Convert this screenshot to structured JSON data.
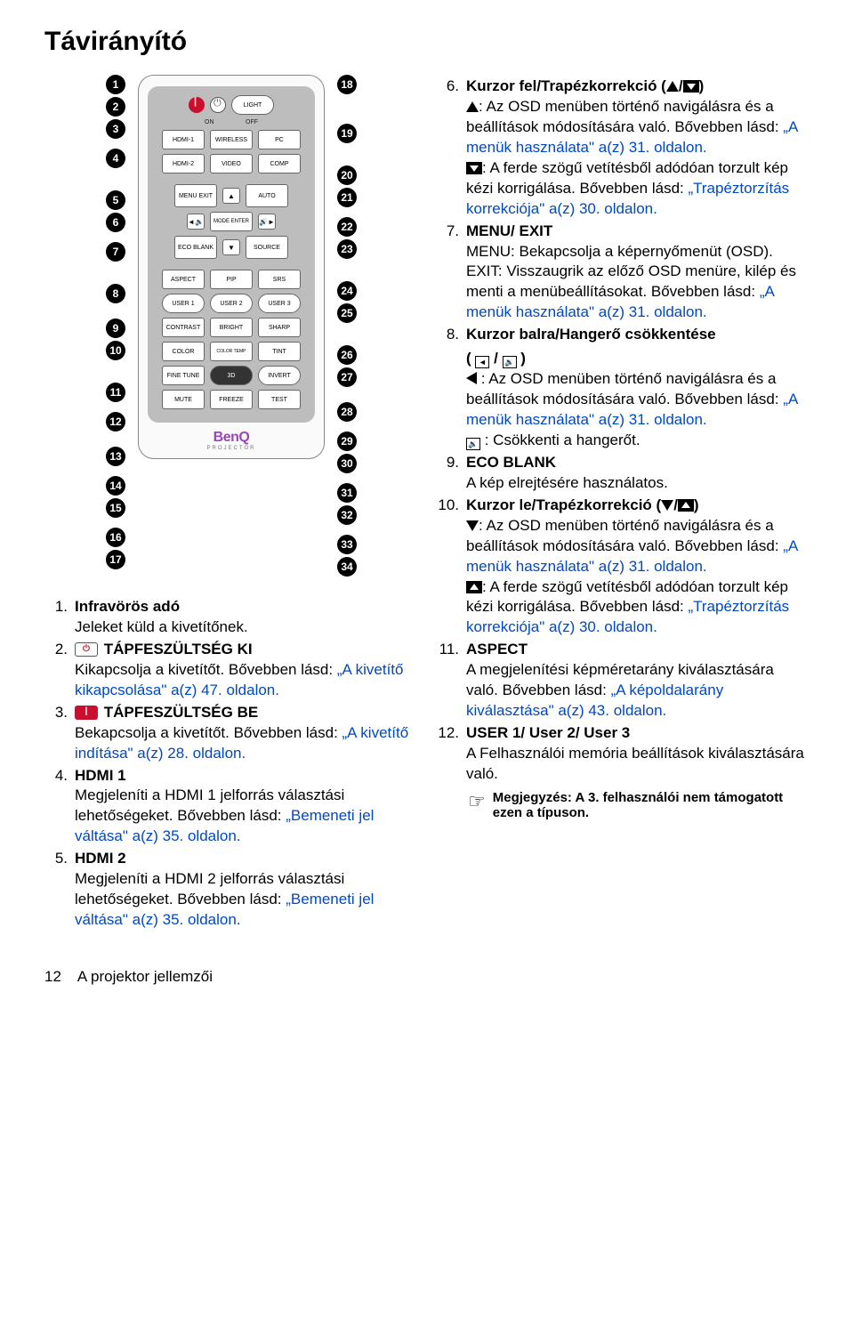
{
  "title": "Távirányító",
  "remote": {
    "onoff_on": "ON",
    "onoff_off": "OFF",
    "light": "LIGHT",
    "hdmi1": "HDMI-1",
    "wireless": "WIRELESS",
    "pc": "PC",
    "hdmi2": "HDMI-2",
    "video": "VIDEO",
    "comp": "COMP",
    "menu_exit": "MENU EXIT",
    "auto": "AUTO",
    "mode_enter": "MODE ENTER",
    "eco_blank": "ECO BLANK",
    "source": "SOURCE",
    "aspect": "ASPECT",
    "pip": "PIP",
    "srs": "SRS",
    "user1": "USER 1",
    "user2": "USER 2",
    "user3": "USER 3",
    "contrast": "CONTRAST",
    "bright": "BRIGHT",
    "sharp": "SHARP",
    "color": "COLOR",
    "colortemp": "COLOR TEMP",
    "tint": "TINT",
    "finetune": "FINE TUNE",
    "threeD": "3D",
    "invert": "INVERT",
    "mute": "MUTE",
    "freeze": "FREEZE",
    "test": "TEST",
    "logo": "BenQ",
    "logo_sub": "PROJECTOR"
  },
  "left_nums": [
    "1",
    "2",
    "3",
    "4",
    "5",
    "6",
    "7",
    "8",
    "9",
    "10",
    "11",
    "12",
    "13",
    "14",
    "15",
    "16",
    "17"
  ],
  "right_nums": [
    "18",
    "19",
    "20",
    "21",
    "22",
    "23",
    "24",
    "25",
    "26",
    "27",
    "28",
    "29",
    "30",
    "31",
    "32",
    "33",
    "34"
  ],
  "defs_left": [
    {
      "num": "1.",
      "title": "Infravörös adó",
      "body": "Jeleket küld a kivetítőnek.",
      "icon": null
    },
    {
      "num": "2.",
      "title": "TÁPFESZÜLTSÉG KI",
      "body": "Kikapcsolja a kivetítőt. Bővebben lásd: ",
      "link": "„A kivetítő kikapcsolása\" a(z) 47. oldalon.",
      "icon": "pow-off"
    },
    {
      "num": "3.",
      "title": "TÁPFESZÜLTSÉG BE",
      "body": "Bekapcsolja a kivetítőt. Bővebben lásd: ",
      "link": "„A kivetítő indítása\" a(z) 28. oldalon.",
      "icon": "pow-on"
    },
    {
      "num": "4.",
      "title": "HDMI 1",
      "body": "Megjeleníti a HDMI 1 jelforrás választási lehetőségeket. Bővebben lásd: ",
      "link": "„Bemeneti jel váltása\" a(z) 35. oldalon.",
      "icon": null
    },
    {
      "num": "5.",
      "title": "HDMI 2",
      "body": "Megjeleníti a HDMI 2 jelforrás választási lehetőségeket. Bővebben lásd: ",
      "link": "„Bemeneti jel váltása\" a(z) 35. oldalon.",
      "icon": null
    }
  ],
  "defs_right": [
    {
      "num": "6.",
      "title": "Kurzor fel/Trapézkorrekció (",
      "title_icons": "up",
      "title_after": ")",
      "para1_icon": "tri-up",
      "para1": ": Az OSD menüben történő navigálásra és a beállítások módosítására való. Bővebben lásd: ",
      "para1_link": "„A menük használata\" a(z) 31. oldalon.",
      "para2_icon": "key-down",
      "para2": ": A ferde szögű vetítésből adódóan torzult kép kézi korrigálása. Bővebben lásd: ",
      "para2_link": "„Trapéztorzítás korrekciója\" a(z) 30. oldalon."
    },
    {
      "num": "7.",
      "title": "MENU/ EXIT",
      "body": "MENU: Bekapcsolja a képernyőmenüt (OSD). EXIT: Visszaugrik az előző OSD menüre, kilép és menti a menübeállításokat. Bővebben lásd: ",
      "link": "„A menük használata\" a(z) 31. oldalon."
    },
    {
      "num": "8.",
      "title": "Kurzor balra/Hangerő csökkentése",
      "title_sub": "left-vol",
      "para1_icon": "tri-left",
      "para1": " : Az OSD menüben történő navigálásra és a beállítások módosítására való. Bővebben lásd: ",
      "para1_link": "„A menük használata\" a(z) 31. oldalon.",
      "para2_icon": "vol",
      "para2": " : Csökkenti a hangerőt."
    },
    {
      "num": "9.",
      "title": "ECO BLANK",
      "body": "A kép elrejtésére használatos."
    },
    {
      "num": "10.",
      "title": "Kurzor le/Trapézkorrekció (",
      "title_icons": "down",
      "title_after": ")",
      "para1_icon": "tri-down",
      "para1": ": Az OSD menüben történő navigálásra és a beállítások módosítására való. Bővebben lásd: ",
      "para1_link": "„A menük használata\" a(z) 31. oldalon.",
      "para2_icon": "key-up",
      "para2": ": A ferde szögű vetítésből adódóan torzult kép kézi korrigálása. Bővebben lásd: ",
      "para2_link": "„Trapéztorzítás korrekciója\" a(z) 30. oldalon."
    },
    {
      "num": "11.",
      "title": "ASPECT",
      "body": "A megjelenítési képméretarány kiválasztására való. Bővebben lásd: ",
      "link": "„A képoldalarány kiválasztása\" a(z) 43. oldalon."
    },
    {
      "num": "12.",
      "title": "USER 1/ User 2/ User 3",
      "body": "A Felhasználói memória beállítások kiválasztására való."
    }
  ],
  "note": {
    "text": "Megjegyzés: A 3. felhasználói nem támogatott ezen a típuson."
  },
  "footer": {
    "page": "12",
    "section": "A projektor jellemzői"
  }
}
